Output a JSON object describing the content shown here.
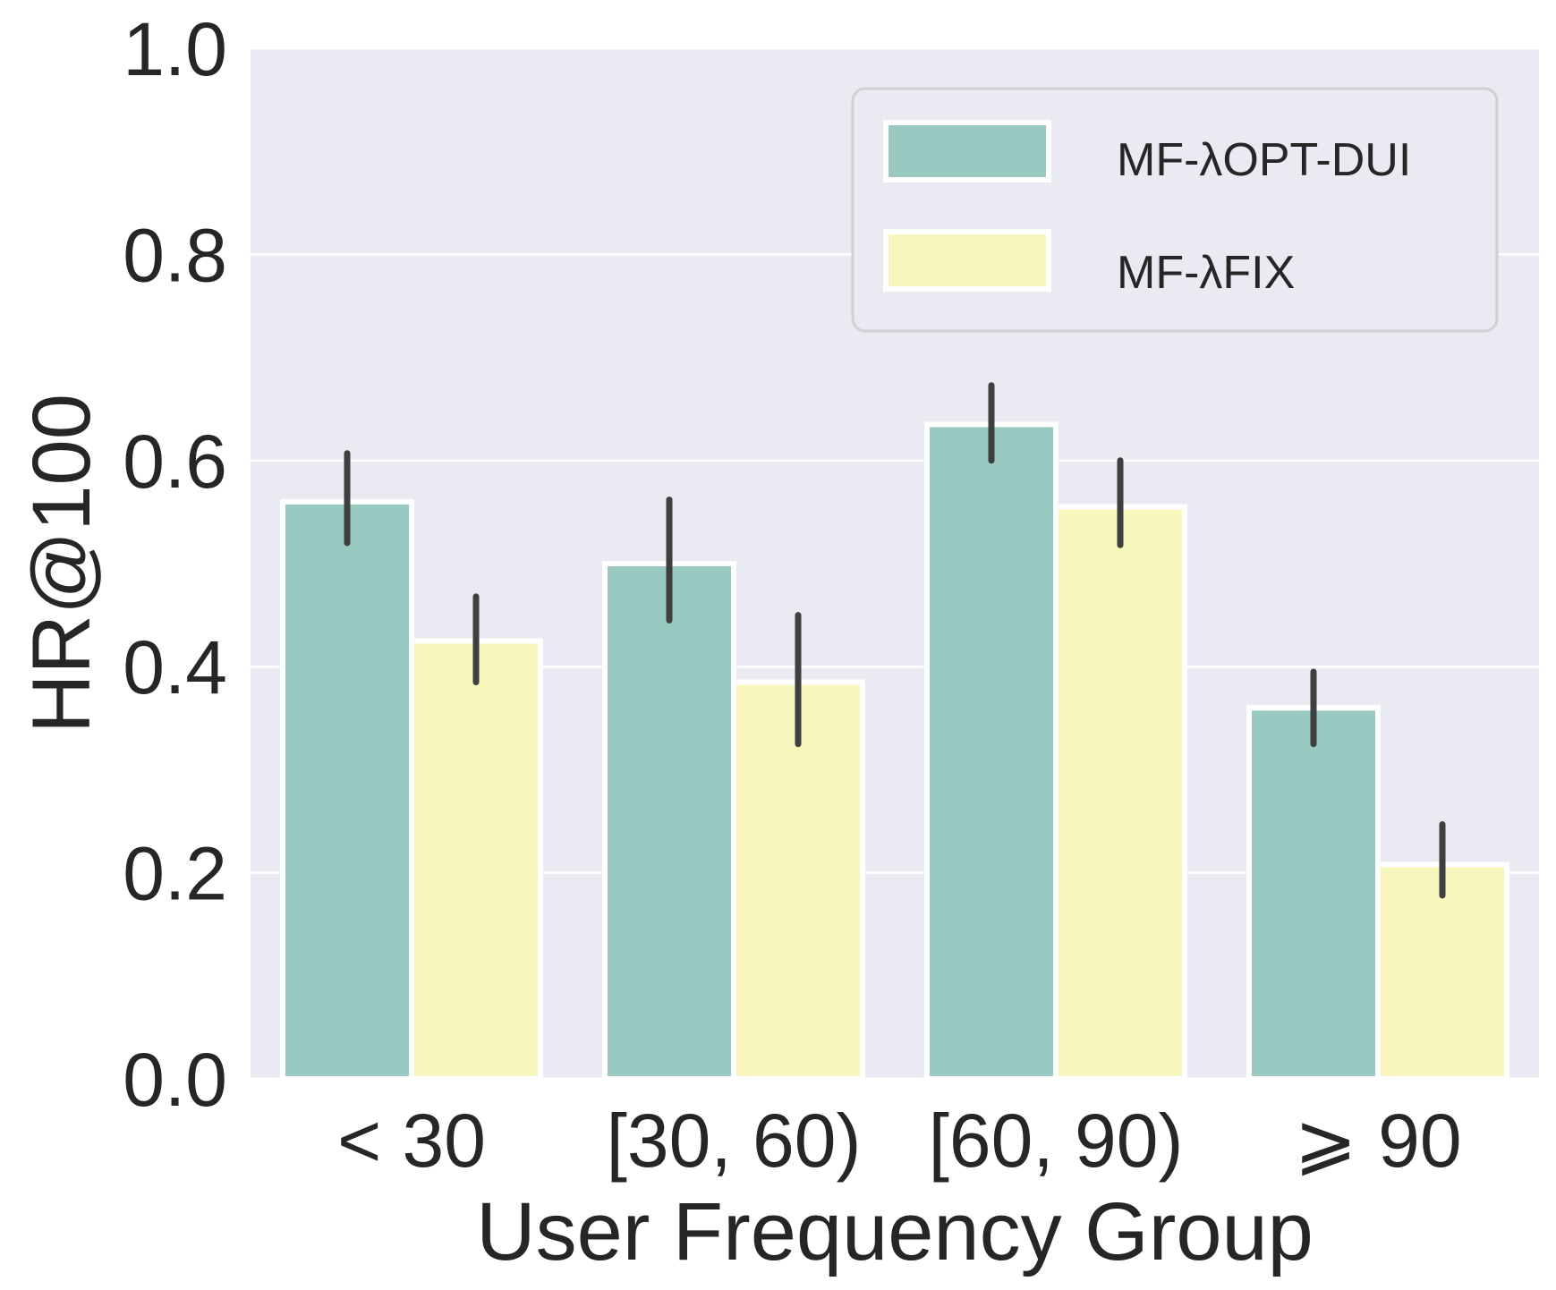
{
  "chart_data": {
    "type": "bar",
    "title": "",
    "xlabel": "User Frequency Group",
    "ylabel": "HR@100",
    "ylim": [
      0.0,
      1.0
    ],
    "yticks": [
      "0.0",
      "0.2",
      "0.4",
      "0.6",
      "0.8",
      "1.0"
    ],
    "categories": [
      "< 30",
      "[30, 60)",
      "[60, 90)",
      "⩾ 90"
    ],
    "series": [
      {
        "name": "MF-λOPT-DUI",
        "color": "#99c9c1",
        "values": [
          0.56,
          0.5,
          0.635,
          0.36
        ],
        "err_low": [
          0.52,
          0.445,
          0.6,
          0.325
        ],
        "err_high": [
          0.607,
          0.562,
          0.673,
          0.395
        ]
      },
      {
        "name": "MF-λFIX",
        "color": "#f6f6bd",
        "values": [
          0.425,
          0.385,
          0.555,
          0.208
        ],
        "err_low": [
          0.385,
          0.325,
          0.518,
          0.178
        ],
        "err_high": [
          0.468,
          0.45,
          0.6,
          0.247
        ]
      }
    ],
    "grid": true,
    "legend_position": "top-right",
    "background_color": "#eaeaf2",
    "grid_color": "#ffffff",
    "errorbar_color": "#3f3f3f"
  }
}
